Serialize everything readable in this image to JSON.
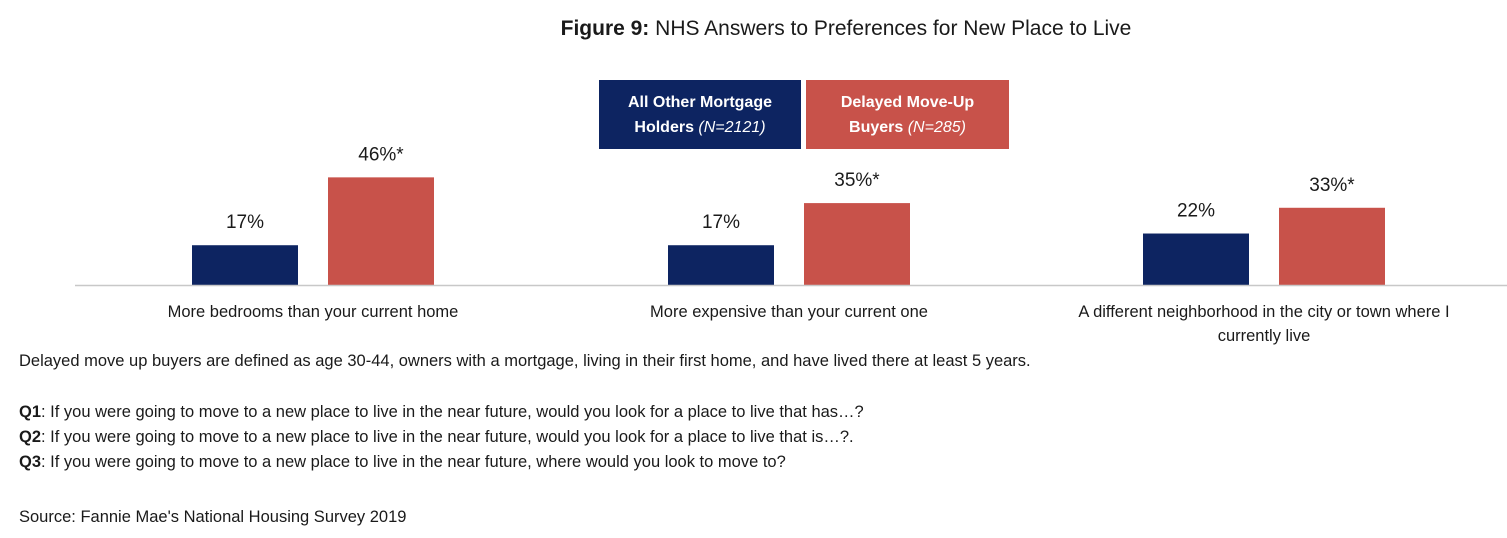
{
  "title": {
    "prefix": "Figure 9:",
    "text": "NHS Answers to Preferences for New Place to Live"
  },
  "colors": {
    "series_0": "#0d2461",
    "series_1": "#c8524a",
    "axis": "#c8c8c8",
    "text": "#1a1a1a"
  },
  "legend": [
    {
      "name_lines": [
        "All Other Mortgage",
        "Holders"
      ],
      "n": "(N=2121)"
    },
    {
      "name_lines": [
        "Delayed Move-Up",
        "Buyers"
      ],
      "n": "(N=285)"
    }
  ],
  "chart_data": {
    "type": "bar",
    "categories": [
      "More bedrooms than your current home",
      "More expensive than your current one",
      "A different neighborhood in the city or town where I currently live"
    ],
    "category_lines": [
      [
        "More bedrooms than your current home"
      ],
      [
        "More expensive than your current one"
      ],
      [
        "A different neighborhood in the city or town where I",
        "currently live"
      ]
    ],
    "series": [
      {
        "name": "All Other Mortgage Holders (N=2121)",
        "values": [
          17,
          17,
          22
        ],
        "labels": [
          "17%",
          "17%",
          "22%"
        ]
      },
      {
        "name": "Delayed Move-Up Buyers (N=285)",
        "values": [
          46,
          35,
          33
        ],
        "labels": [
          "46%*",
          "35%*",
          "33%*"
        ]
      }
    ],
    "legend_position": "top-center",
    "grid": false
  },
  "notes": {
    "definition": "Delayed move up buyers are defined as age 30-44, owners with a mortgage, living in their first home, and have lived there at least 5 years.",
    "questions": [
      {
        "label": "Q1",
        "text": ": If you were going to move to a new place to live in the near future, would you look for a place to live that has…?"
      },
      {
        "label": "Q2",
        "text": ": If you were going to move to a new place to live in the near future, would you look for a place to live that is…?."
      },
      {
        "label": "Q3",
        "text": ": If you were going to move to a new place to live in the near future, where would you look to move to?"
      }
    ],
    "source": "Source: Fannie Mae's National Housing Survey 2019"
  }
}
